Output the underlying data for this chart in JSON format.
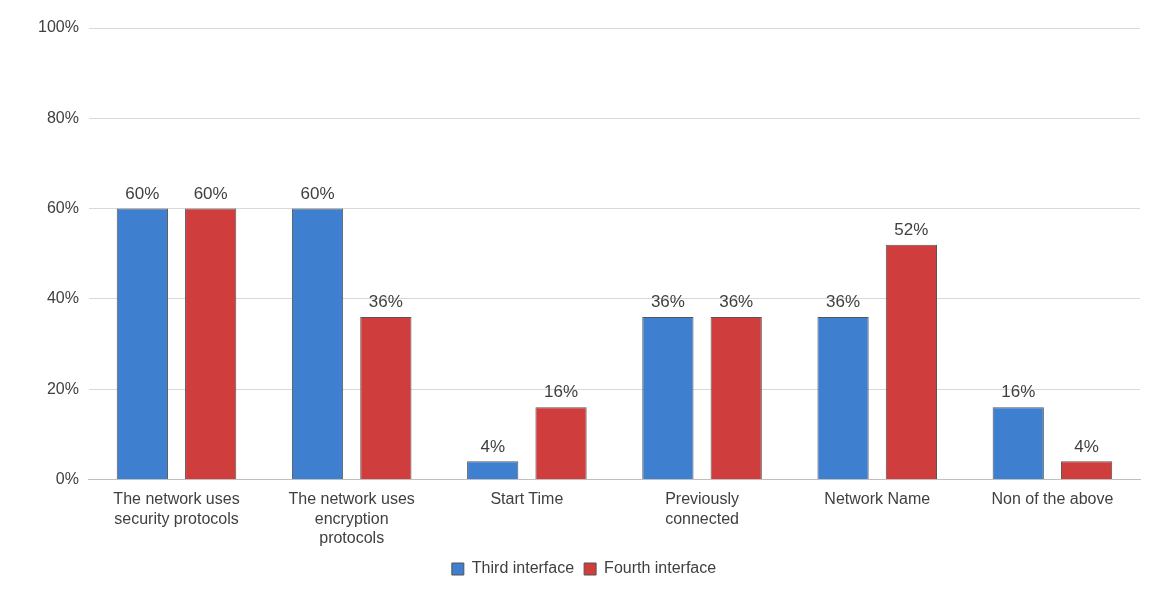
{
  "chart_data": {
    "type": "bar",
    "categories": [
      "The network uses security protocols",
      "The network uses encryption protocols",
      "Start Time",
      "Previously connected",
      "Network Name",
      "Non of the above"
    ],
    "series": [
      {
        "name": "Third interface",
        "color": "#3f7fd0",
        "values": [
          60,
          60,
          4,
          36,
          36,
          16
        ],
        "value_labels": [
          "60%",
          "60%",
          "4%",
          "36%",
          "36%",
          "16%"
        ]
      },
      {
        "name": "Fourth interface",
        "color": "#d03d3d",
        "values": [
          60,
          36,
          16,
          36,
          52,
          4
        ],
        "value_labels": [
          "60%",
          "36%",
          "16%",
          "36%",
          "52%",
          "4%"
        ]
      }
    ],
    "ylim": [
      0,
      100
    ],
    "yticks": [
      {
        "value": 0,
        "label": "0%"
      },
      {
        "value": 20,
        "label": "20%"
      },
      {
        "value": 40,
        "label": "40%"
      },
      {
        "value": 60,
        "label": "60%"
      },
      {
        "value": 80,
        "label": "80%"
      },
      {
        "value": 100,
        "label": "100%"
      }
    ],
    "grid": "y",
    "legend": "bottom"
  }
}
